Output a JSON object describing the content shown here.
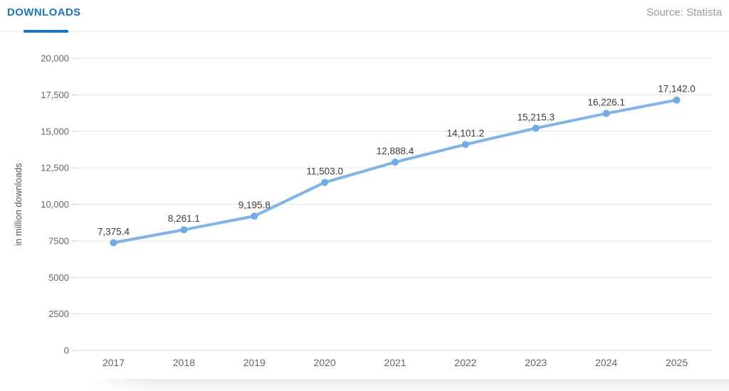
{
  "header": {
    "title": "DOWNLOADS",
    "source": "Source: Statista"
  },
  "colors": {
    "accent_blue": "#1c75c4",
    "line": "#7cb5ec",
    "marker": "#6fabe4",
    "grid": "#e6e6e6",
    "zero_line": "#d8d8d8",
    "tick": "#ccd1d9",
    "axis_text": "#666666",
    "ylabel_text": "#555555",
    "data_label": "#3c3c3c",
    "source_text": "#9d9d9d"
  },
  "chart_data": {
    "type": "line",
    "title": "DOWNLOADS",
    "categories": [
      "2017",
      "2018",
      "2019",
      "2020",
      "2021",
      "2022",
      "2023",
      "2024",
      "2025"
    ],
    "series": [
      {
        "name": "Downloads",
        "values": [
          7375.4,
          8261.1,
          9195.8,
          11503.0,
          12888.4,
          14101.2,
          15215.3,
          16226.1,
          17142.0
        ]
      }
    ],
    "point_labels": [
      "7,375.4",
      "8,261.1",
      "9,195.8",
      "11,503.0",
      "12,888.4",
      "14,101.2",
      "15,215.3",
      "16,226.1",
      "17,142.0"
    ],
    "xlabel": "",
    "ylabel": "in million downloads",
    "ylim": [
      0,
      20000
    ],
    "ytick_interval": 2500,
    "ytick_labels": [
      "0",
      "2500",
      "5000",
      "7500",
      "10,000",
      "12,500",
      "15,000",
      "17,500",
      "20,000"
    ],
    "grid": true,
    "legend": "none"
  }
}
